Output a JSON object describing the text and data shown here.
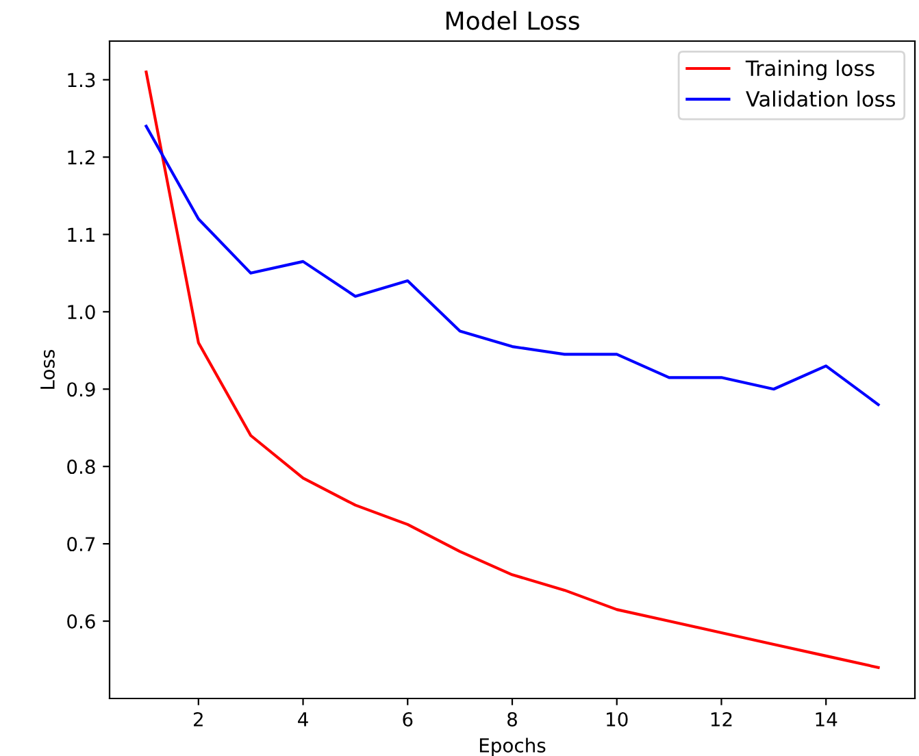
{
  "chart_data": {
    "type": "line",
    "title": "Model Loss",
    "xlabel": "Epochs",
    "ylabel": "Loss",
    "x": [
      1,
      2,
      3,
      4,
      5,
      6,
      7,
      8,
      9,
      10,
      11,
      12,
      13,
      14,
      15
    ],
    "series": [
      {
        "name": "Training loss",
        "color": "#ff0000",
        "values": [
          1.31,
          0.96,
          0.84,
          0.785,
          0.75,
          0.725,
          0.69,
          0.66,
          0.64,
          0.615,
          0.6,
          0.585,
          0.57,
          0.555,
          0.54
        ]
      },
      {
        "name": "Validation loss",
        "color": "#0000ff",
        "values": [
          1.24,
          1.12,
          1.05,
          1.065,
          1.02,
          1.04,
          0.975,
          0.955,
          0.945,
          0.945,
          0.915,
          0.915,
          0.9,
          0.93,
          0.88
        ]
      }
    ],
    "xlim": [
      0.3,
      15.7
    ],
    "ylim": [
      0.5,
      1.35
    ],
    "xticks": [
      2,
      4,
      6,
      8,
      10,
      12,
      14
    ],
    "yticks": [
      0.6,
      0.7,
      0.8,
      0.9,
      {
        "value": 1.0,
        "label": "1.0"
      },
      1.1,
      1.2,
      1.3
    ],
    "legend": "top right",
    "grid": false
  }
}
